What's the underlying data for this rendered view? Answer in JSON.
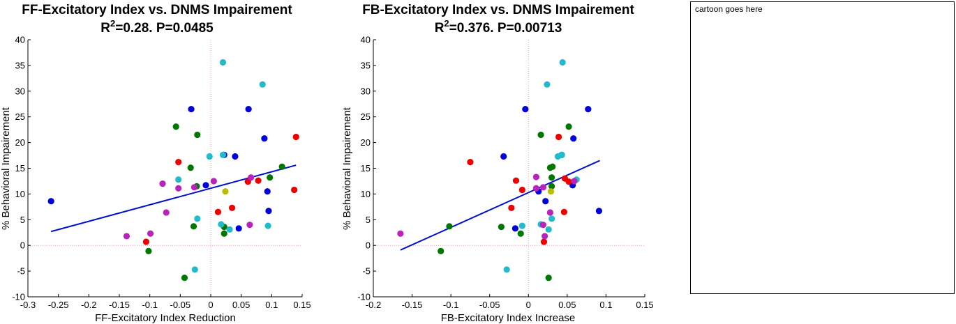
{
  "colors": {
    "blue": "#0000dd",
    "green": "#007700",
    "red": "#ee0000",
    "cyan": "#22bbcc",
    "magenta": "#bb22bb",
    "yellow": "#bbbb00",
    "fit": "#0010cc",
    "zero": "#ff9999"
  },
  "cartoon": {
    "placeholder": "cartoon goes here"
  },
  "chart_data": [
    {
      "type": "scatter",
      "title": "FF-Excitatory Index vs. DNMS Impairement",
      "subtitle_prefix": "R",
      "subtitle_sup": "2",
      "subtitle_rest": "=0.28. P=0.0485",
      "xlabel": "FF-Excitatory Index Reduction",
      "ylabel": "% Behavioral Impairement",
      "xlim": [
        -0.3,
        0.15
      ],
      "ylim": [
        -10,
        40
      ],
      "xticks": [
        -0.3,
        -0.25,
        -0.2,
        -0.15,
        -0.1,
        -0.05,
        0,
        0.05,
        0.1,
        0.15
      ],
      "xtick_labels": [
        "-0.3",
        "-0.25",
        "-0.2",
        "-0.15",
        "-0.1",
        "-0.05",
        "0",
        "0.05",
        "0.1",
        "0.15"
      ],
      "yticks": [
        -10,
        -5,
        0,
        5,
        10,
        15,
        20,
        25,
        30,
        35,
        40
      ],
      "ytick_labels": [
        "-10",
        "-5",
        "0",
        "5",
        "10",
        "15",
        "20",
        "25",
        "30",
        "35",
        "40"
      ],
      "fit_line": [
        [
          -0.262,
          2.7
        ],
        [
          0.14,
          15.6
        ]
      ],
      "points": [
        {
          "x": -0.262,
          "y": 8.6,
          "c": "blue"
        },
        {
          "x": -0.032,
          "y": 26.5,
          "c": "blue"
        },
        {
          "x": -0.008,
          "y": 11.7,
          "c": "blue"
        },
        {
          "x": 0.022,
          "y": 17.6,
          "c": "blue"
        },
        {
          "x": 0.04,
          "y": 17.3,
          "c": "blue"
        },
        {
          "x": 0.046,
          "y": 3.3,
          "c": "blue"
        },
        {
          "x": 0.062,
          "y": 26.5,
          "c": "blue"
        },
        {
          "x": 0.088,
          "y": 20.8,
          "c": "blue"
        },
        {
          "x": 0.093,
          "y": 10.5,
          "c": "blue"
        },
        {
          "x": 0.095,
          "y": 6.7,
          "c": "blue"
        },
        {
          "x": -0.057,
          "y": 23.1,
          "c": "green"
        },
        {
          "x": -0.022,
          "y": 21.5,
          "c": "green"
        },
        {
          "x": -0.033,
          "y": 15.1,
          "c": "green"
        },
        {
          "x": -0.023,
          "y": 11.5,
          "c": "green"
        },
        {
          "x": -0.028,
          "y": 3.7,
          "c": "green"
        },
        {
          "x": -0.102,
          "y": -1.1,
          "c": "green"
        },
        {
          "x": -0.043,
          "y": -6.3,
          "c": "green"
        },
        {
          "x": 0.022,
          "y": 3.6,
          "c": "green"
        },
        {
          "x": 0.022,
          "y": 2.3,
          "c": "green"
        },
        {
          "x": 0.097,
          "y": 13.2,
          "c": "green"
        },
        {
          "x": 0.117,
          "y": 15.3,
          "c": "green"
        },
        {
          "x": -0.053,
          "y": 16.2,
          "c": "red"
        },
        {
          "x": -0.106,
          "y": 0.7,
          "c": "red"
        },
        {
          "x": 0.012,
          "y": 6.5,
          "c": "red"
        },
        {
          "x": 0.035,
          "y": 7.3,
          "c": "red"
        },
        {
          "x": 0.061,
          "y": 12.4,
          "c": "red"
        },
        {
          "x": 0.078,
          "y": 12.6,
          "c": "red"
        },
        {
          "x": 0.137,
          "y": 10.8,
          "c": "red"
        },
        {
          "x": 0.14,
          "y": 21.1,
          "c": "red"
        },
        {
          "x": 0.02,
          "y": 35.6,
          "c": "cyan"
        },
        {
          "x": 0.085,
          "y": 31.3,
          "c": "cyan"
        },
        {
          "x": -0.002,
          "y": 17.3,
          "c": "cyan"
        },
        {
          "x": 0.02,
          "y": 17.6,
          "c": "cyan"
        },
        {
          "x": -0.053,
          "y": 12.8,
          "c": "cyan"
        },
        {
          "x": -0.022,
          "y": 5.2,
          "c": "cyan"
        },
        {
          "x": 0.017,
          "y": 4.1,
          "c": "cyan"
        },
        {
          "x": 0.031,
          "y": 3.1,
          "c": "cyan"
        },
        {
          "x": 0.094,
          "y": 3.8,
          "c": "cyan"
        },
        {
          "x": -0.026,
          "y": -4.7,
          "c": "cyan"
        },
        {
          "x": -0.079,
          "y": 12.0,
          "c": "magenta"
        },
        {
          "x": -0.053,
          "y": 11.1,
          "c": "magenta"
        },
        {
          "x": -0.027,
          "y": 11.3,
          "c": "magenta"
        },
        {
          "x": 0.005,
          "y": 12.5,
          "c": "magenta"
        },
        {
          "x": 0.066,
          "y": 13.2,
          "c": "magenta"
        },
        {
          "x": -0.073,
          "y": 6.4,
          "c": "magenta"
        },
        {
          "x": -0.099,
          "y": 2.3,
          "c": "magenta"
        },
        {
          "x": -0.138,
          "y": 1.8,
          "c": "magenta"
        },
        {
          "x": 0.064,
          "y": 4.0,
          "c": "magenta"
        },
        {
          "x": 0.024,
          "y": 10.5,
          "c": "yellow"
        }
      ]
    },
    {
      "type": "scatter",
      "title": "FB-Excitatory Index vs. DNMS Impairement",
      "subtitle_prefix": "R",
      "subtitle_sup": "2",
      "subtitle_rest": "=0.376. P=0.00713",
      "xlabel": "FB-Excitatory Index Increase",
      "ylabel": "% Behavioral Impairement",
      "xlim": [
        -0.2,
        0.15
      ],
      "ylim": [
        -10,
        40
      ],
      "xticks": [
        -0.2,
        -0.15,
        -0.1,
        -0.05,
        0,
        0.05,
        0.1,
        0.15
      ],
      "xtick_labels": [
        "-0.2",
        "-0.15",
        "-0.1",
        "-0.05",
        "0",
        "0.05",
        "0.1",
        "0.15"
      ],
      "yticks": [
        -10,
        -5,
        0,
        5,
        10,
        15,
        20,
        25,
        30,
        35,
        40
      ],
      "ytick_labels": [
        "-10",
        "-5",
        "0",
        "5",
        "10",
        "15",
        "20",
        "25",
        "30",
        "35",
        "40"
      ],
      "fit_line": [
        [
          -0.165,
          -0.9
        ],
        [
          0.092,
          16.5
        ]
      ],
      "points": [
        {
          "x": -0.004,
          "y": 26.5,
          "c": "blue"
        },
        {
          "x": 0.077,
          "y": 26.5,
          "c": "blue"
        },
        {
          "x": 0.058,
          "y": 20.8,
          "c": "blue"
        },
        {
          "x": -0.032,
          "y": 17.3,
          "c": "blue"
        },
        {
          "x": 0.043,
          "y": 17.6,
          "c": "blue"
        },
        {
          "x": 0.057,
          "y": 11.7,
          "c": "blue"
        },
        {
          "x": 0.013,
          "y": 10.5,
          "c": "blue"
        },
        {
          "x": 0.022,
          "y": 8.6,
          "c": "blue"
        },
        {
          "x": -0.017,
          "y": 3.3,
          "c": "blue"
        },
        {
          "x": 0.091,
          "y": 6.7,
          "c": "blue"
        },
        {
          "x": 0.052,
          "y": 23.1,
          "c": "green"
        },
        {
          "x": 0.016,
          "y": 21.5,
          "c": "green"
        },
        {
          "x": 0.028,
          "y": 15.1,
          "c": "green"
        },
        {
          "x": 0.031,
          "y": 15.3,
          "c": "green"
        },
        {
          "x": 0.03,
          "y": 13.2,
          "c": "green"
        },
        {
          "x": 0.03,
          "y": 11.5,
          "c": "green"
        },
        {
          "x": -0.102,
          "y": 3.7,
          "c": "green"
        },
        {
          "x": -0.035,
          "y": 3.6,
          "c": "green"
        },
        {
          "x": -0.01,
          "y": 2.3,
          "c": "green"
        },
        {
          "x": -0.113,
          "y": -1.1,
          "c": "green"
        },
        {
          "x": 0.026,
          "y": -6.3,
          "c": "green"
        },
        {
          "x": 0.039,
          "y": 21.1,
          "c": "red"
        },
        {
          "x": -0.075,
          "y": 16.2,
          "c": "red"
        },
        {
          "x": 0.047,
          "y": 13.0,
          "c": "red"
        },
        {
          "x": -0.016,
          "y": 12.6,
          "c": "red"
        },
        {
          "x": 0.052,
          "y": 12.4,
          "c": "red"
        },
        {
          "x": -0.008,
          "y": 10.8,
          "c": "red"
        },
        {
          "x": -0.022,
          "y": 7.3,
          "c": "red"
        },
        {
          "x": 0.046,
          "y": 6.5,
          "c": "red"
        },
        {
          "x": 0.02,
          "y": 0.7,
          "c": "red"
        },
        {
          "x": 0.044,
          "y": 35.6,
          "c": "cyan"
        },
        {
          "x": 0.024,
          "y": 31.3,
          "c": "cyan"
        },
        {
          "x": 0.038,
          "y": 17.3,
          "c": "cyan"
        },
        {
          "x": 0.043,
          "y": 17.6,
          "c": "cyan"
        },
        {
          "x": 0.062,
          "y": 12.8,
          "c": "cyan"
        },
        {
          "x": -0.008,
          "y": 3.8,
          "c": "cyan"
        },
        {
          "x": 0.016,
          "y": 4.1,
          "c": "cyan"
        },
        {
          "x": 0.03,
          "y": 5.2,
          "c": "cyan"
        },
        {
          "x": 0.026,
          "y": 3.1,
          "c": "cyan"
        },
        {
          "x": -0.028,
          "y": -4.7,
          "c": "cyan"
        },
        {
          "x": -0.165,
          "y": 2.3,
          "c": "magenta"
        },
        {
          "x": 0.01,
          "y": 13.3,
          "c": "magenta"
        },
        {
          "x": 0.01,
          "y": 11.1,
          "c": "magenta"
        },
        {
          "x": 0.019,
          "y": 11.3,
          "c": "magenta"
        },
        {
          "x": 0.059,
          "y": 12.5,
          "c": "magenta"
        },
        {
          "x": 0.028,
          "y": 6.4,
          "c": "magenta"
        },
        {
          "x": 0.019,
          "y": 4.0,
          "c": "magenta"
        },
        {
          "x": 0.021,
          "y": 1.8,
          "c": "magenta"
        },
        {
          "x": 0.029,
          "y": 10.5,
          "c": "yellow"
        }
      ]
    }
  ]
}
